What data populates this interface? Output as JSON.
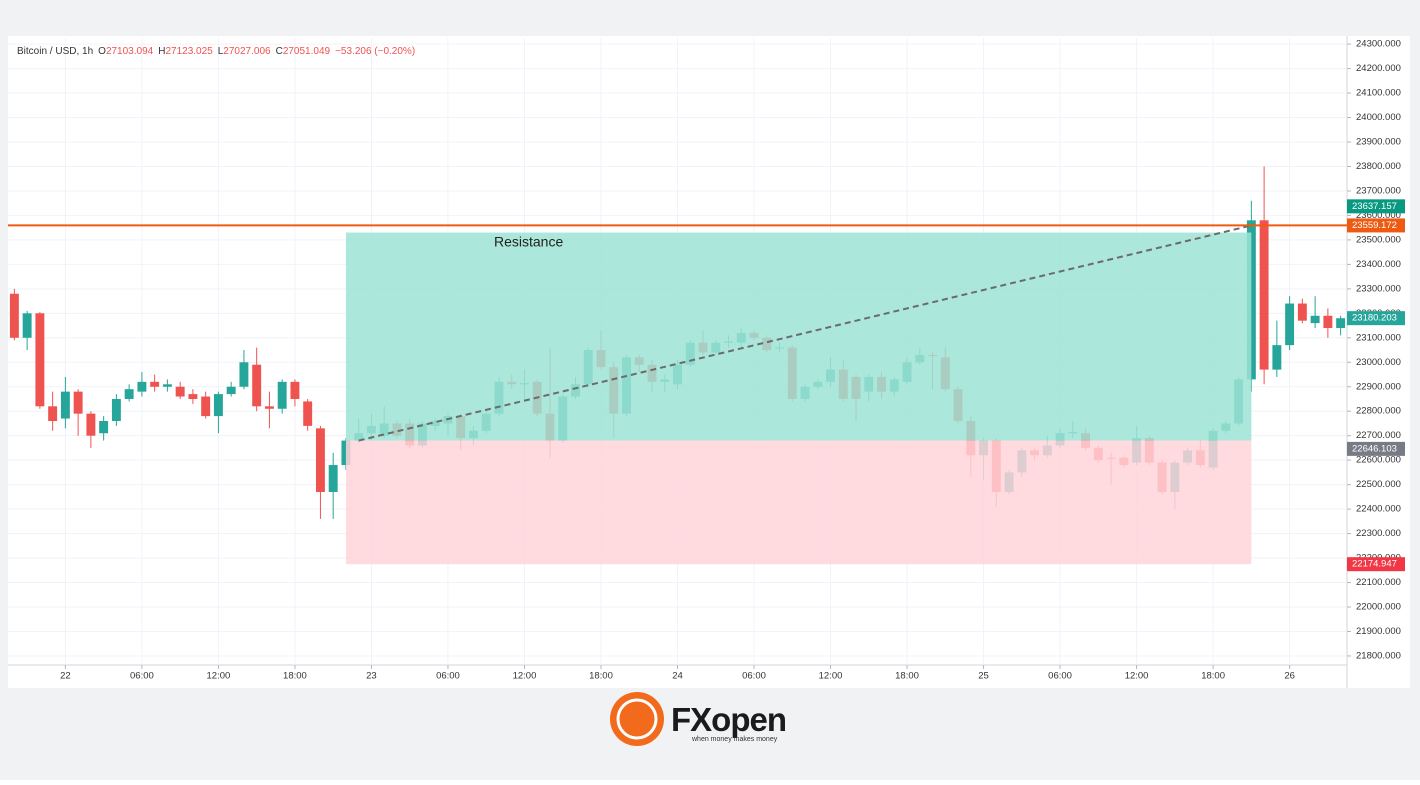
{
  "header": {
    "symbol": "Bitcoin / USD, 1h",
    "ohlc": [
      {
        "label": "O",
        "value": "27103.094"
      },
      {
        "label": "H",
        "value": "27123.025"
      },
      {
        "label": "L",
        "value": "27027.006"
      },
      {
        "label": "C",
        "value": "27051.049"
      }
    ],
    "change": "−53.206 (−0.20%)"
  },
  "chart_data": {
    "type": "candlestick",
    "categories": [
      null,
      null,
      null,
      null,
      "22",
      null,
      null,
      null,
      null,
      null,
      "06:00",
      null,
      null,
      null,
      null,
      null,
      "12:00",
      null,
      null,
      null,
      null,
      null,
      "18:00",
      null,
      null,
      null,
      null,
      null,
      "23",
      null,
      null,
      null,
      null,
      null,
      "06:00",
      null,
      null,
      null,
      null,
      null,
      "12:00",
      null,
      null,
      null,
      null,
      null,
      "18:00",
      null,
      null,
      null,
      null,
      null,
      "24",
      null,
      null,
      null,
      null,
      null,
      "06:00",
      null,
      null,
      null,
      null,
      null,
      "12:00",
      null,
      null,
      null,
      null,
      null,
      "18:00",
      null,
      null,
      null,
      null,
      null,
      "25",
      null,
      null,
      null,
      null,
      null,
      "06:00",
      null,
      null,
      null,
      null,
      null,
      "12:00",
      null,
      null,
      null,
      null,
      null,
      "18:00",
      null,
      null,
      null,
      null,
      null,
      "26",
      null,
      null,
      null,
      null
    ],
    "series": [
      {
        "name": "Bitcoin / USD",
        "up_color": "#26a69a",
        "down_color": "#ef5350",
        "open": [
          23280,
          23100,
          23200,
          22820,
          22770,
          22880,
          22790,
          22710,
          22760,
          22850,
          22880,
          22920,
          22900,
          22900,
          22870,
          22860,
          22780,
          22870,
          22900,
          22990,
          22820,
          22810,
          22920,
          22840,
          22730,
          22470,
          22580,
          22680,
          22710,
          22700,
          22750,
          22750,
          22660,
          22740,
          22750,
          22780,
          22690,
          22720,
          22790,
          22920,
          22910,
          22920,
          22790,
          22680,
          22860,
          22910,
          23050,
          22980,
          22790,
          23020,
          22990,
          22920,
          22910,
          22990,
          23080,
          23040,
          23080,
          23080,
          23120,
          23100,
          23060,
          23060,
          22850,
          22900,
          22920,
          22970,
          22940,
          22880,
          22940,
          22880,
          22920,
          23000,
          23030,
          23020,
          22890,
          22760,
          22620,
          22680,
          22470,
          22550,
          22640,
          22620,
          22660,
          22710,
          22710,
          22650,
          22610,
          22610,
          22590,
          22690,
          22590,
          22470,
          22590,
          22640,
          22570,
          22720,
          22750,
          22930,
          23580,
          22970,
          23070,
          23240,
          23160,
          23190,
          23140
        ],
        "high": [
          23300,
          23210,
          23205,
          22880,
          22940,
          22890,
          22800,
          22780,
          22870,
          22910,
          22960,
          22950,
          22930,
          22920,
          22890,
          22880,
          22880,
          22920,
          23050,
          23060,
          22880,
          22930,
          22930,
          22850,
          22740,
          22630,
          22690,
          22770,
          22790,
          22820,
          22760,
          22770,
          22760,
          22770,
          22790,
          22790,
          22740,
          22800,
          22940,
          22950,
          22970,
          22930,
          23060,
          22870,
          22940,
          23060,
          23130,
          23000,
          23030,
          23030,
          23010,
          22950,
          23010,
          23090,
          23130,
          23090,
          23110,
          23140,
          23130,
          23110,
          23080,
          23070,
          22910,
          22930,
          23020,
          23010,
          22950,
          22950,
          22960,
          22940,
          23020,
          23060,
          23040,
          23060,
          22900,
          22780,
          22690,
          22690,
          22560,
          22650,
          22650,
          22700,
          22730,
          22760,
          22730,
          22660,
          22630,
          22620,
          22740,
          22700,
          22600,
          22600,
          22650,
          22680,
          22730,
          22760,
          22940,
          23660,
          23800,
          23170,
          23270,
          23260,
          23270,
          23220,
          23190
        ],
        "low": [
          23090,
          23050,
          22810,
          22720,
          22730,
          22700,
          22650,
          22680,
          22740,
          22840,
          22860,
          22880,
          22880,
          22850,
          22830,
          22770,
          22710,
          22860,
          22890,
          22800,
          22730,
          22790,
          22820,
          22720,
          22360,
          22360,
          22560,
          22670,
          22680,
          22690,
          22690,
          22650,
          22650,
          22720,
          22700,
          22640,
          22660,
          22710,
          22780,
          22890,
          22850,
          22780,
          22610,
          22670,
          22850,
          22900,
          22970,
          22690,
          22780,
          22960,
          22880,
          22880,
          22890,
          22980,
          23030,
          23030,
          23060,
          23060,
          23090,
          23040,
          23040,
          22840,
          22840,
          22890,
          22900,
          22840,
          22760,
          22840,
          22850,
          22860,
          22910,
          22990,
          22890,
          22880,
          22750,
          22530,
          22520,
          22410,
          22460,
          22530,
          22600,
          22610,
          22650,
          22690,
          22640,
          22590,
          22500,
          22570,
          22580,
          22580,
          22460,
          22400,
          22580,
          22570,
          22560,
          22710,
          22740,
          22880,
          22910,
          22940,
          23050,
          23160,
          23140,
          23100,
          23110
        ],
        "close": [
          23100,
          23200,
          22820,
          22760,
          22880,
          22790,
          22700,
          22760,
          22850,
          22890,
          22920,
          22900,
          22910,
          22860,
          22850,
          22780,
          22870,
          22900,
          23000,
          22820,
          22810,
          22920,
          22850,
          22740,
          22470,
          22580,
          22680,
          22710,
          22740,
          22750,
          22700,
          22660,
          22750,
          22760,
          22780,
          22690,
          22720,
          22790,
          22920,
          22910,
          22915,
          22790,
          22680,
          22860,
          22910,
          23050,
          22980,
          22790,
          23020,
          22990,
          22920,
          22930,
          22990,
          23080,
          23040,
          23080,
          23085,
          23120,
          23100,
          23050,
          23060,
          22850,
          22900,
          22920,
          22970,
          22850,
          22850,
          22940,
          22880,
          22930,
          23000,
          23030,
          23025,
          22890,
          22760,
          22620,
          22680,
          22470,
          22550,
          22640,
          22620,
          22660,
          22710,
          22715,
          22650,
          22600,
          22605,
          22580,
          22690,
          22590,
          22470,
          22590,
          22640,
          22580,
          22720,
          22750,
          22930,
          23580,
          22970,
          23070,
          23240,
          23170,
          23190,
          23140,
          23180
        ]
      }
    ],
    "ylim": [
      21763,
      24325
    ],
    "yticks": [
      {
        "value": 21800,
        "label": "21800.000"
      },
      {
        "value": 21900,
        "label": "21900.000"
      },
      {
        "value": 22000,
        "label": "22000.000"
      },
      {
        "value": 22100,
        "label": "22100.000"
      },
      {
        "value": 22200,
        "label": "22200.000"
      },
      {
        "value": 22300,
        "label": "22300.000"
      },
      {
        "value": 22400,
        "label": "22400.000"
      },
      {
        "value": 22500,
        "label": "22500.000"
      },
      {
        "value": 22600,
        "label": "22600.000"
      },
      {
        "value": 22700,
        "label": "22700.000"
      },
      {
        "value": 22800,
        "label": "22800.000"
      },
      {
        "value": 22900,
        "label": "22900.000"
      },
      {
        "value": 23000,
        "label": "23000.000"
      },
      {
        "value": 23100,
        "label": "23100.000"
      },
      {
        "value": 23200,
        "label": "23200.000"
      },
      {
        "value": 23300,
        "label": "23300.000"
      },
      {
        "value": 23400,
        "label": "23400.000"
      },
      {
        "value": 23500,
        "label": "23500.000"
      },
      {
        "value": 23600,
        "label": "23600.000"
      },
      {
        "value": 23700,
        "label": "23700.000"
      },
      {
        "value": 23800,
        "label": "23800.000"
      },
      {
        "value": 23900,
        "label": "23900.000"
      },
      {
        "value": 24000,
        "label": "24000.000"
      },
      {
        "value": 24100,
        "label": "24100.000"
      },
      {
        "value": 24200,
        "label": "24200.000"
      },
      {
        "value": 24300,
        "label": "24300.000"
      }
    ],
    "grid": true,
    "position": {
      "start": 26,
      "end": 97,
      "top": 23530,
      "entry": 22680,
      "stop": 22174.947,
      "profit_color": "#9ee3d5",
      "loss_color": "#ffd3d9"
    },
    "resistance": {
      "label": "Resistance",
      "value": 23559.172,
      "color": "#ef5a12"
    },
    "trend_line": {
      "start": 27,
      "start_value": 22680,
      "end": 97,
      "end_value": 23559.172,
      "color": "#6b6b6b"
    },
    "price_labels": [
      {
        "value": 23637.157,
        "color": "#089981"
      },
      {
        "value": 23559.172,
        "color": "#ef5a12"
      },
      {
        "value": 23180.203,
        "color": "#26a69a"
      },
      {
        "value": 22646.103,
        "color": "#787b86"
      },
      {
        "value": 22174.947,
        "color": "#f23645"
      }
    ]
  },
  "brand": {
    "name": "FXopen",
    "tagline": "when money makes money"
  }
}
